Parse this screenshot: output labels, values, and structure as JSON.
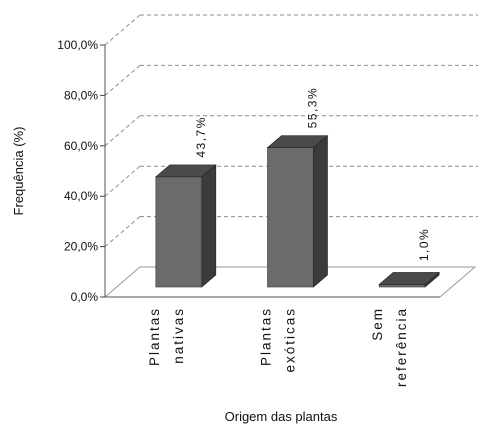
{
  "chart_data": {
    "type": "bar",
    "title": "",
    "xlabel": "Origem das plantas",
    "ylabel": "Frequência (%)",
    "ylim": [
      0,
      100
    ],
    "yticks": [
      "0,0%",
      "20,0%",
      "40,0%",
      "60,0%",
      "80,0%",
      "100,0%"
    ],
    "categories": [
      [
        "Plantas",
        "nativas"
      ],
      [
        "Plantas",
        "exóticas"
      ],
      [
        "Sem",
        "referência"
      ]
    ],
    "values": [
      43.7,
      55.3,
      1.0
    ],
    "value_labels": [
      "43,7%",
      "55,3%",
      "1,0%"
    ],
    "grid": true,
    "legend": "none",
    "colors": {
      "bar_front": "#6b6b6b",
      "bar_side": "#3b3b3b",
      "bar_top": "#4a4a4a",
      "grid": "#8c8c8c"
    }
  }
}
